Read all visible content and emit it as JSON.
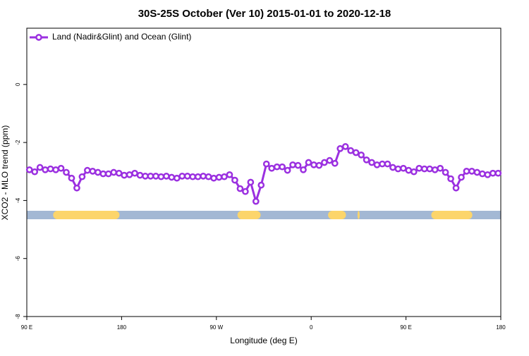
{
  "chart_data": {
    "type": "line",
    "title": "30S-25S October (Ver 10)   2015-01-01 to 2020-12-18",
    "x_label": "Longitude (deg E)",
    "y_label": "XCO2 - MLO trend (ppm)",
    "xlim": [
      90,
      540
    ],
    "xticks": [
      {
        "value": 90,
        "label": "90 E"
      },
      {
        "value": 180,
        "label": "180"
      },
      {
        "value": 270,
        "label": "90 W"
      },
      {
        "value": 360,
        "label": "0"
      },
      {
        "value": 450,
        "label": "90 E"
      },
      {
        "value": 540,
        "label": "180"
      }
    ],
    "ylim": [
      -8,
      1.94
    ],
    "yticks": [
      0,
      -2,
      -4,
      -6,
      -8
    ],
    "legend_position": "top-left",
    "x": [
      92.5,
      97.5,
      102.5,
      107.5,
      112.5,
      117.5,
      122.5,
      127.5,
      132.5,
      137.5,
      142.5,
      147.5,
      152.5,
      157.5,
      162.5,
      167.5,
      172.5,
      177.5,
      182.5,
      187.5,
      192.5,
      197.5,
      202.5,
      207.5,
      212.5,
      217.5,
      222.5,
      227.5,
      232.5,
      237.5,
      242.5,
      247.5,
      252.5,
      257.5,
      262.5,
      267.5,
      272.5,
      277.5,
      282.5,
      287.5,
      292.5,
      297.5,
      302.5,
      307.5,
      312.5,
      317.5,
      322.5,
      327.5,
      332.5,
      337.5,
      342.5,
      347.5,
      352.5,
      357.5,
      362.5,
      367.5,
      372.5,
      377.5,
      382.5,
      387.5,
      392.5,
      397.5,
      402.5,
      407.5,
      412.5,
      417.5,
      422.5,
      427.5,
      432.5,
      437.5,
      442.5,
      447.5,
      452.5,
      457.5,
      462.5,
      467.5,
      472.5,
      477.5,
      482.5,
      487.5,
      492.5,
      497.5,
      502.5,
      507.5,
      512.5,
      517.5,
      522.5,
      527.5,
      532.5,
      537.5
    ],
    "series": [
      {
        "name": "Land (Nadir&Glint) and Ocean (Glint)",
        "color": "#9b30e0",
        "values": [
          -2.94,
          -3.01,
          -2.86,
          -2.94,
          -2.91,
          -2.94,
          -2.89,
          -3.03,
          -3.23,
          -3.57,
          -3.18,
          -2.96,
          -2.99,
          -3.03,
          -3.08,
          -3.08,
          -3.03,
          -3.06,
          -3.13,
          -3.11,
          -3.06,
          -3.13,
          -3.16,
          -3.16,
          -3.16,
          -3.18,
          -3.16,
          -3.2,
          -3.23,
          -3.16,
          -3.16,
          -3.18,
          -3.18,
          -3.16,
          -3.18,
          -3.23,
          -3.2,
          -3.18,
          -3.11,
          -3.3,
          -3.59,
          -3.69,
          -3.37,
          -4.03,
          -3.47,
          -2.74,
          -2.89,
          -2.84,
          -2.84,
          -2.96,
          -2.77,
          -2.79,
          -2.94,
          -2.69,
          -2.77,
          -2.79,
          -2.69,
          -2.62,
          -2.72,
          -2.21,
          -2.14,
          -2.28,
          -2.35,
          -2.43,
          -2.6,
          -2.69,
          -2.77,
          -2.74,
          -2.74,
          -2.86,
          -2.91,
          -2.89,
          -2.96,
          -3.01,
          -2.89,
          -2.91,
          -2.91,
          -2.94,
          -2.89,
          -3.03,
          -3.25,
          -3.57,
          -3.2,
          -2.99,
          -2.99,
          -3.03,
          -3.08,
          -3.11,
          -3.06,
          -3.06
        ]
      }
    ],
    "surface_band": {
      "value": -4.5,
      "color": "#a3b8d4",
      "land_color": "#fcd56b",
      "land_ranges": [
        [
          115,
          178
        ],
        [
          290,
          312
        ],
        [
          376,
          393
        ],
        [
          404,
          406
        ],
        [
          474,
          513
        ]
      ]
    }
  }
}
